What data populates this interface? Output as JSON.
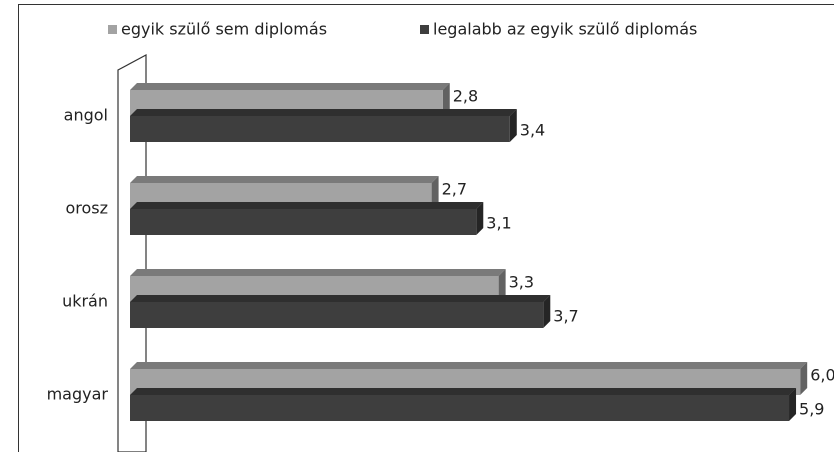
{
  "chart_data": {
    "type": "bar",
    "orientation": "horizontal",
    "categories": [
      "angol",
      "orosz",
      "ukrán",
      "magyar"
    ],
    "series": [
      {
        "name": "egyik szülő sem diplomás",
        "color": "#a3a3a3",
        "values": [
          2.8,
          2.7,
          3.3,
          6.0
        ],
        "value_labels": [
          "2,8",
          "2,7",
          "3,3",
          "6,0"
        ]
      },
      {
        "name": "legalabb az egyik szülő diplomás",
        "color": "#3e3e3e",
        "values": [
          3.4,
          3.1,
          3.7,
          5.9
        ],
        "value_labels": [
          "3,4",
          "3,1",
          "3,7",
          "5,9"
        ]
      }
    ],
    "legend": "top"
  }
}
